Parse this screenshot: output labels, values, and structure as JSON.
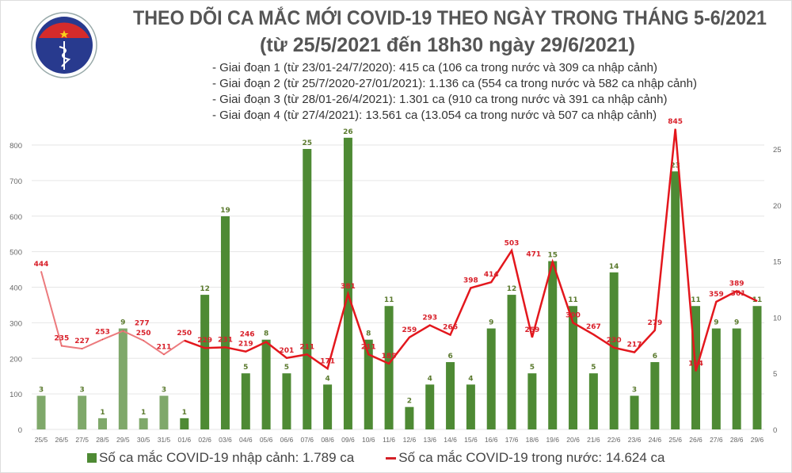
{
  "logo": {
    "text_top": "BỘ Y TẾ",
    "text_bottom": "MINISTRY OF HEALTH"
  },
  "title": {
    "line1": "THEO DÕI CA MẮC MỚI COVID-19 THEO NGÀY TRONG THÁNG 5-6/2021",
    "line2": "(từ 25/5/2021 đến 18h30 ngày 29/6/2021)"
  },
  "phases": [
    "- Giai đoạn 1 (từ 23/01-24/7/2020): 415 ca (106 ca trong nước và 309 ca nhập cảnh)",
    "- Giai đoạn 2 (từ 25/7/2020-27/01/2021): 1.136 ca (554 ca trong nước và 582 ca nhập cảnh)",
    "- Giai đoạn 3 (từ 28/01-26/4/2021): 1.301 ca (910 ca trong nước và 391 ca nhập cảnh)",
    "- Giai đoạn 4 (từ 27/4/2021): 13.561 ca (13.054 ca trong nước và 507 ca nhập cảnh)"
  ],
  "legend": {
    "bars": "Số ca mắc COVID-19 nhập cảnh: 1.789 ca",
    "line": "Số ca mắc COVID-19 trong nước: 14.624 ca"
  },
  "chart_data": {
    "type": "bar+line",
    "categories": [
      "25/5",
      "26/5",
      "27/5",
      "28/5",
      "29/5",
      "30/5",
      "31/5",
      "01/6",
      "02/6",
      "03/6",
      "04/6",
      "05/6",
      "06/6",
      "07/6",
      "08/6",
      "09/6",
      "10/6",
      "11/6",
      "12/6",
      "13/6",
      "14/6",
      "15/6",
      "16/6",
      "17/6",
      "18/6",
      "19/6",
      "20/6",
      "21/6",
      "22/6",
      "23/6",
      "24/6",
      "25/6",
      "26/6",
      "27/6",
      "28/6",
      "29/6"
    ],
    "series": [
      {
        "name": "Số ca mắc COVID-19 nhập cảnh: 1.789 ca",
        "type": "bar",
        "axis": "right",
        "color": "#4e8a34",
        "values": [
          3,
          0,
          3,
          1,
          9,
          1,
          3,
          1,
          12,
          19,
          5,
          8,
          5,
          25,
          4,
          26,
          8,
          11,
          2,
          4,
          6,
          4,
          9,
          12,
          5,
          15,
          11,
          5,
          14,
          3,
          6,
          23,
          11,
          9,
          9,
          11
        ]
      },
      {
        "name": "Số ca mắc COVID-19 trong nước: 14.624 ca",
        "type": "line",
        "axis": "left",
        "color": "#e3171d",
        "values": [
          444,
          235,
          227,
          253,
          277,
          250,
          211,
          250,
          229,
          231,
          219,
          246,
          201,
          211,
          171,
          381,
          211,
          185,
          259,
          293,
          266,
          398,
          414,
          503,
          259,
          471,
          300,
          267,
          230,
          217,
          279,
          845,
          164,
          359,
          389,
          361
        ]
      }
    ],
    "left_axis": {
      "min": 0,
      "max": 800,
      "ticks": [
        0,
        100,
        200,
        300,
        400,
        500,
        600,
        700,
        800
      ]
    },
    "right_axis": {
      "min": 0,
      "max": 25,
      "ticks": [
        0,
        5,
        10,
        15,
        20,
        25
      ]
    },
    "grid": true,
    "legend_position": "bottom"
  }
}
